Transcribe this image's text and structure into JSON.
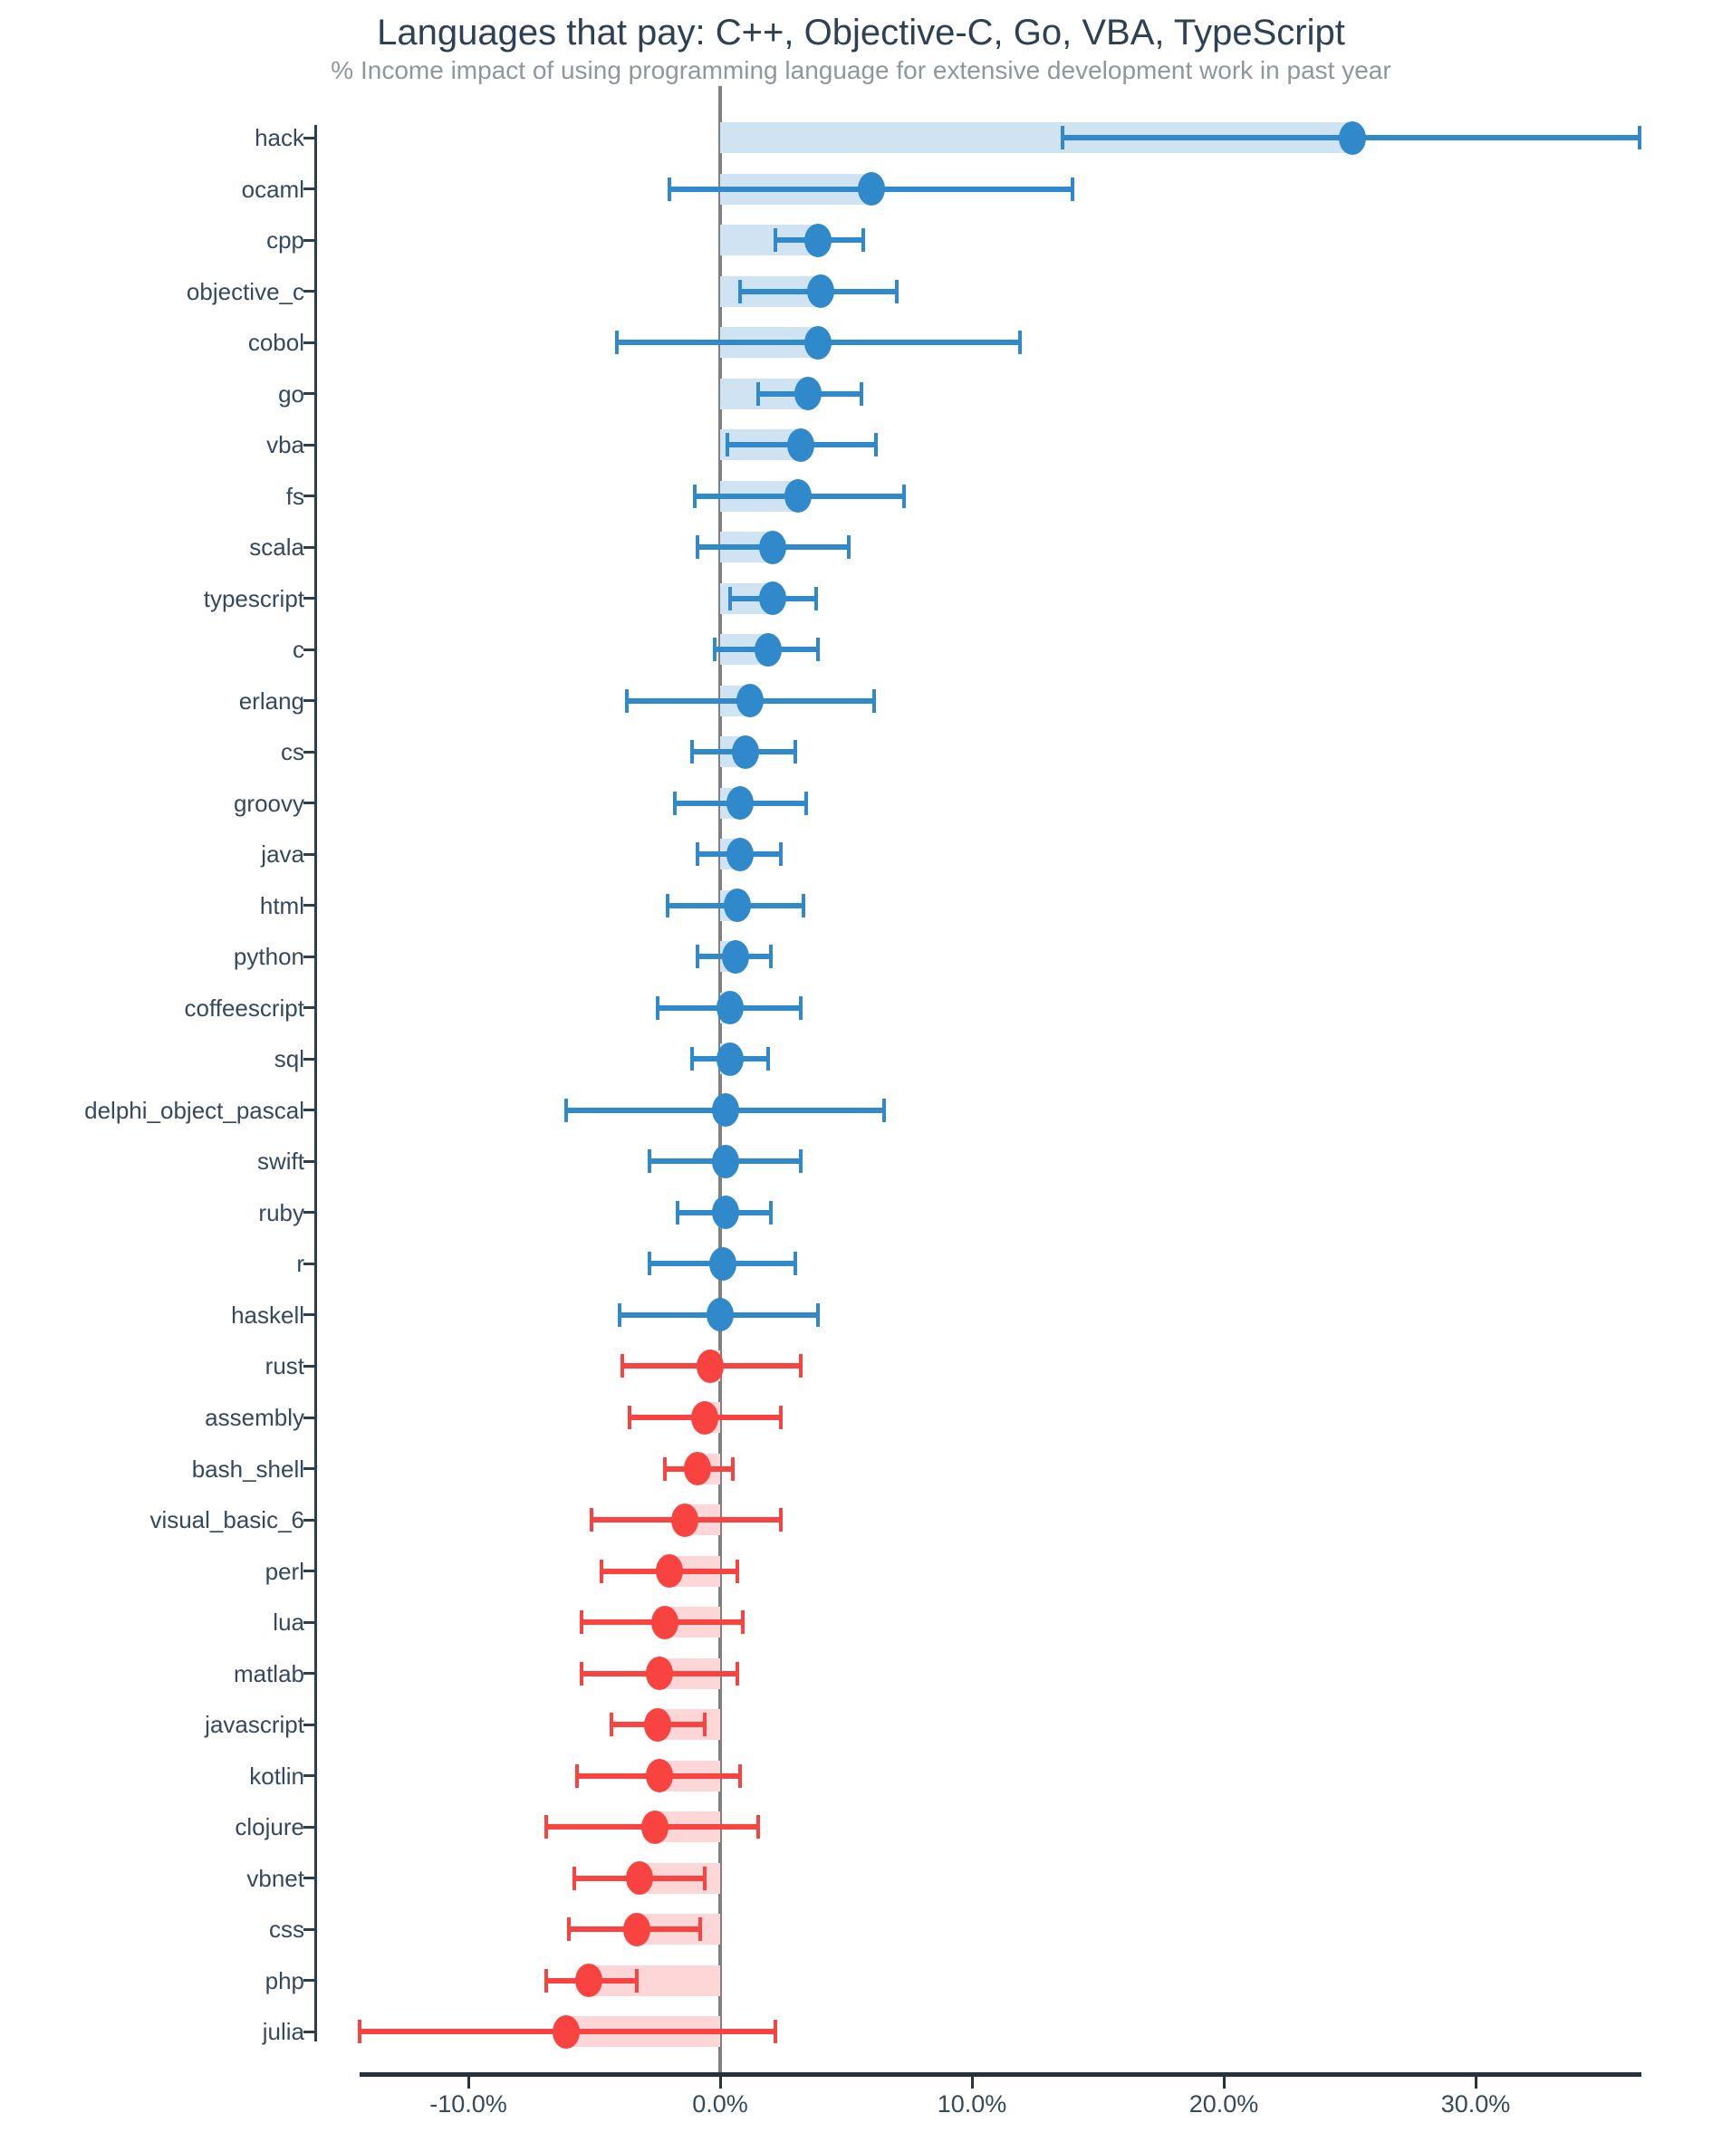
{
  "chart_data": {
    "type": "scatter",
    "subtype": "dot-plot-with-error-bars",
    "title": "Languages that pay: C++, Objective-C, Go, VBA, TypeScript",
    "subtitle": "% Income impact of using programming language for extensive development work in past year",
    "xlabel": "",
    "ylabel": "",
    "x_unit": "percent",
    "xlim": [
      -16.0,
      36.6
    ],
    "grid": false,
    "legend": "none",
    "zero_reference_line": 0,
    "x_ticks": [
      {
        "value": -10,
        "label": "-10.0%"
      },
      {
        "value": 0,
        "label": "0.0%"
      },
      {
        "value": 10,
        "label": "10.0%"
      },
      {
        "value": 20,
        "label": "20.0%"
      },
      {
        "value": 30,
        "label": "30.0%"
      }
    ],
    "colors": {
      "blue": "#3089cb",
      "blue_band": "#cfe3f3",
      "red": "#f94341",
      "red_band": "#fdd6d7",
      "zero_line": "#808080",
      "axis": "#2c3e50",
      "label_text": "#34495e",
      "title_text": "#2e4053",
      "subtitle_text": "#8f979b"
    },
    "points": [
      {
        "label": "hack",
        "value": 25.1,
        "lo": 13.6,
        "hi": 36.5,
        "color": "blue"
      },
      {
        "label": "ocaml",
        "value": 6.0,
        "lo": -2.0,
        "hi": 14.0,
        "color": "blue"
      },
      {
        "label": "cpp",
        "value": 3.9,
        "lo": 2.2,
        "hi": 5.7,
        "color": "blue"
      },
      {
        "label": "objective_c",
        "value": 4.0,
        "lo": 0.8,
        "hi": 7.0,
        "color": "blue"
      },
      {
        "label": "cobol",
        "value": 3.9,
        "lo": -4.1,
        "hi": 11.9,
        "color": "blue"
      },
      {
        "label": "go",
        "value": 3.5,
        "lo": 1.5,
        "hi": 5.6,
        "color": "blue"
      },
      {
        "label": "vba",
        "value": 3.2,
        "lo": 0.3,
        "hi": 6.2,
        "color": "blue"
      },
      {
        "label": "fs",
        "value": 3.1,
        "lo": -1.0,
        "hi": 7.3,
        "color": "blue"
      },
      {
        "label": "scala",
        "value": 2.1,
        "lo": -0.9,
        "hi": 5.1,
        "color": "blue"
      },
      {
        "label": "typescript",
        "value": 2.1,
        "lo": 0.4,
        "hi": 3.8,
        "color": "blue"
      },
      {
        "label": "c",
        "value": 1.9,
        "lo": -0.2,
        "hi": 3.9,
        "color": "blue"
      },
      {
        "label": "erlang",
        "value": 1.2,
        "lo": -3.7,
        "hi": 6.1,
        "color": "blue"
      },
      {
        "label": "cs",
        "value": 1.0,
        "lo": -1.1,
        "hi": 3.0,
        "color": "blue"
      },
      {
        "label": "groovy",
        "value": 0.8,
        "lo": -1.8,
        "hi": 3.4,
        "color": "blue"
      },
      {
        "label": "java",
        "value": 0.8,
        "lo": -0.9,
        "hi": 2.4,
        "color": "blue"
      },
      {
        "label": "html",
        "value": 0.7,
        "lo": -2.1,
        "hi": 3.3,
        "color": "blue"
      },
      {
        "label": "python",
        "value": 0.6,
        "lo": -0.9,
        "hi": 2.0,
        "color": "blue"
      },
      {
        "label": "coffeescript",
        "value": 0.4,
        "lo": -2.5,
        "hi": 3.2,
        "color": "blue"
      },
      {
        "label": "sql",
        "value": 0.4,
        "lo": -1.1,
        "hi": 1.9,
        "color": "blue"
      },
      {
        "label": "delphi_object_pascal",
        "value": 0.2,
        "lo": -6.1,
        "hi": 6.5,
        "color": "blue"
      },
      {
        "label": "swift",
        "value": 0.2,
        "lo": -2.8,
        "hi": 3.2,
        "color": "blue"
      },
      {
        "label": "ruby",
        "value": 0.2,
        "lo": -1.7,
        "hi": 2.0,
        "color": "blue"
      },
      {
        "label": "r",
        "value": 0.1,
        "lo": -2.8,
        "hi": 3.0,
        "color": "blue"
      },
      {
        "label": "haskell",
        "value": 0.0,
        "lo": -4.0,
        "hi": 3.9,
        "color": "blue"
      },
      {
        "label": "rust",
        "value": -0.4,
        "lo": -3.9,
        "hi": 3.2,
        "color": "red"
      },
      {
        "label": "assembly",
        "value": -0.6,
        "lo": -3.6,
        "hi": 2.4,
        "color": "red"
      },
      {
        "label": "bash_shell",
        "value": -0.9,
        "lo": -2.2,
        "hi": 0.5,
        "color": "red"
      },
      {
        "label": "visual_basic_6",
        "value": -1.4,
        "lo": -5.1,
        "hi": 2.4,
        "color": "red"
      },
      {
        "label": "perl",
        "value": -2.0,
        "lo": -4.7,
        "hi": 0.7,
        "color": "red"
      },
      {
        "label": "lua",
        "value": -2.2,
        "lo": -5.5,
        "hi": 0.9,
        "color": "red"
      },
      {
        "label": "matlab",
        "value": -2.4,
        "lo": -5.5,
        "hi": 0.7,
        "color": "red"
      },
      {
        "label": "javascript",
        "value": -2.5,
        "lo": -4.3,
        "hi": -0.6,
        "color": "red"
      },
      {
        "label": "kotlin",
        "value": -2.4,
        "lo": -5.7,
        "hi": 0.8,
        "color": "red"
      },
      {
        "label": "clojure",
        "value": -2.6,
        "lo": -6.9,
        "hi": 1.5,
        "color": "red"
      },
      {
        "label": "vbnet",
        "value": -3.2,
        "lo": -5.8,
        "hi": -0.6,
        "color": "red"
      },
      {
        "label": "css",
        "value": -3.3,
        "lo": -6.0,
        "hi": -0.8,
        "color": "red"
      },
      {
        "label": "php",
        "value": -5.2,
        "lo": -6.9,
        "hi": -3.3,
        "color": "red"
      },
      {
        "label": "julia",
        "value": -6.1,
        "lo": -14.3,
        "hi": 2.2,
        "color": "red"
      }
    ]
  }
}
